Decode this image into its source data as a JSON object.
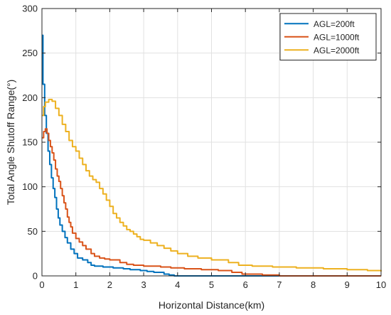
{
  "chart_data": {
    "type": "line",
    "title": "",
    "xlabel": "Horizontal Distance(km)",
    "ylabel": "Total  Angle Shutoff Range(°)",
    "xlim": [
      0,
      10
    ],
    "ylim": [
      0,
      300
    ],
    "xticks": [
      "0",
      "1",
      "2",
      "3",
      "4",
      "5",
      "6",
      "7",
      "8",
      "9",
      "10"
    ],
    "yticks": [
      "0",
      "50",
      "100",
      "150",
      "200",
      "250",
      "300"
    ],
    "grid": true,
    "legend_position": "top-right",
    "series": [
      {
        "name": "AGL=200ft",
        "color": "#0072BD",
        "x": [
          0,
          0.03,
          0.08,
          0.13,
          0.18,
          0.23,
          0.28,
          0.33,
          0.38,
          0.43,
          0.48,
          0.53,
          0.6,
          0.68,
          0.75,
          0.85,
          0.95,
          1.05,
          1.2,
          1.35,
          1.45,
          1.55,
          1.8,
          2.1,
          2.4,
          2.6,
          2.9,
          3.1,
          3.3,
          3.6,
          3.75,
          3.9,
          4.2,
          5.0,
          5.5,
          5.8,
          6.0,
          7.0,
          8.0,
          9.0,
          10.0
        ],
        "y": [
          270,
          215,
          180,
          160,
          140,
          125,
          110,
          98,
          88,
          75,
          65,
          57,
          50,
          43,
          37,
          30,
          25,
          20,
          18,
          15,
          12,
          11,
          10,
          9,
          8,
          7,
          6,
          5,
          4,
          2,
          1,
          0,
          0,
          0,
          0,
          0,
          0,
          0,
          0,
          0,
          0
        ]
      },
      {
        "name": "AGL=1000ft",
        "color": "#D95319",
        "x": [
          0,
          0.05,
          0.1,
          0.15,
          0.2,
          0.25,
          0.3,
          0.35,
          0.4,
          0.45,
          0.5,
          0.55,
          0.6,
          0.65,
          0.7,
          0.75,
          0.8,
          0.85,
          0.9,
          1.0,
          1.1,
          1.2,
          1.3,
          1.45,
          1.55,
          1.7,
          1.85,
          2.0,
          2.3,
          2.5,
          2.7,
          3.0,
          3.5,
          3.8,
          4.2,
          4.7,
          5.2,
          5.6,
          5.9,
          6.5,
          7.0,
          8.0,
          9.0,
          10.0
        ],
        "y": [
          155,
          162,
          165,
          160,
          152,
          145,
          138,
          130,
          120,
          112,
          106,
          98,
          90,
          82,
          75,
          66,
          60,
          55,
          48,
          42,
          38,
          34,
          30,
          25,
          22,
          20,
          19,
          18,
          15,
          13,
          12,
          11,
          10,
          9,
          8,
          7,
          6,
          4,
          2,
          1,
          0,
          0,
          0,
          0
        ]
      },
      {
        "name": "AGL=2000ft",
        "color": "#EDB120",
        "x": [
          0,
          0.05,
          0.1,
          0.2,
          0.3,
          0.4,
          0.5,
          0.6,
          0.7,
          0.8,
          0.9,
          1.0,
          1.1,
          1.2,
          1.3,
          1.4,
          1.5,
          1.6,
          1.7,
          1.8,
          1.9,
          2.0,
          2.1,
          2.2,
          2.3,
          2.4,
          2.5,
          2.6,
          2.7,
          2.8,
          2.9,
          3.0,
          3.2,
          3.4,
          3.6,
          3.8,
          4.0,
          4.3,
          4.6,
          5.0,
          5.5,
          5.8,
          6.2,
          6.8,
          7.5,
          8.3,
          9.0,
          9.6,
          10.0
        ],
        "y": [
          180,
          190,
          195,
          198,
          196,
          188,
          180,
          170,
          162,
          152,
          145,
          140,
          132,
          125,
          118,
          112,
          108,
          105,
          98,
          92,
          85,
          78,
          70,
          65,
          60,
          56,
          52,
          50,
          47,
          44,
          41,
          40,
          37,
          34,
          31,
          28,
          25,
          22,
          20,
          18,
          15,
          12,
          11,
          10,
          9,
          8,
          7,
          6,
          5
        ]
      }
    ]
  }
}
